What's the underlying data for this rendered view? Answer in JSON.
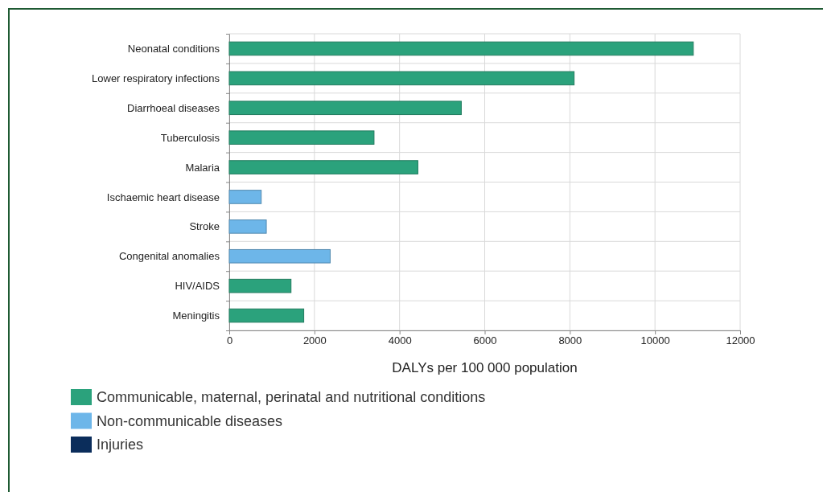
{
  "chart_data": {
    "type": "bar",
    "orientation": "horizontal",
    "xlabel": "DALYs per 100 000 population",
    "categories": [
      "Neonatal conditions",
      "Lower respiratory infections",
      "Diarrhoeal diseases",
      "Tuberculosis",
      "Malaria",
      "Ischaemic heart disease",
      "Stroke",
      "Congenital anomalies",
      "HIV/AIDS",
      "Meningitis"
    ],
    "series": [
      {
        "name": "Communicable, maternal, perinatal and nutritional conditions",
        "color": "#2ba27c",
        "values": [
          10900,
          8100,
          5450,
          3400,
          4430,
          null,
          null,
          null,
          1450,
          1750
        ]
      },
      {
        "name": "Non-communicable diseases",
        "color": "#6db6e9",
        "values": [
          null,
          null,
          null,
          null,
          null,
          750,
          870,
          2370,
          null,
          null
        ]
      },
      {
        "name": "Injuries",
        "color": "#0b2d5b",
        "values": [
          null,
          null,
          null,
          null,
          null,
          null,
          null,
          null,
          null,
          null
        ]
      }
    ],
    "xlim": [
      0,
      12000
    ],
    "xticks": [
      0,
      2000,
      4000,
      6000,
      8000,
      10000,
      12000
    ],
    "grid": true,
    "legend": "bottom left"
  }
}
